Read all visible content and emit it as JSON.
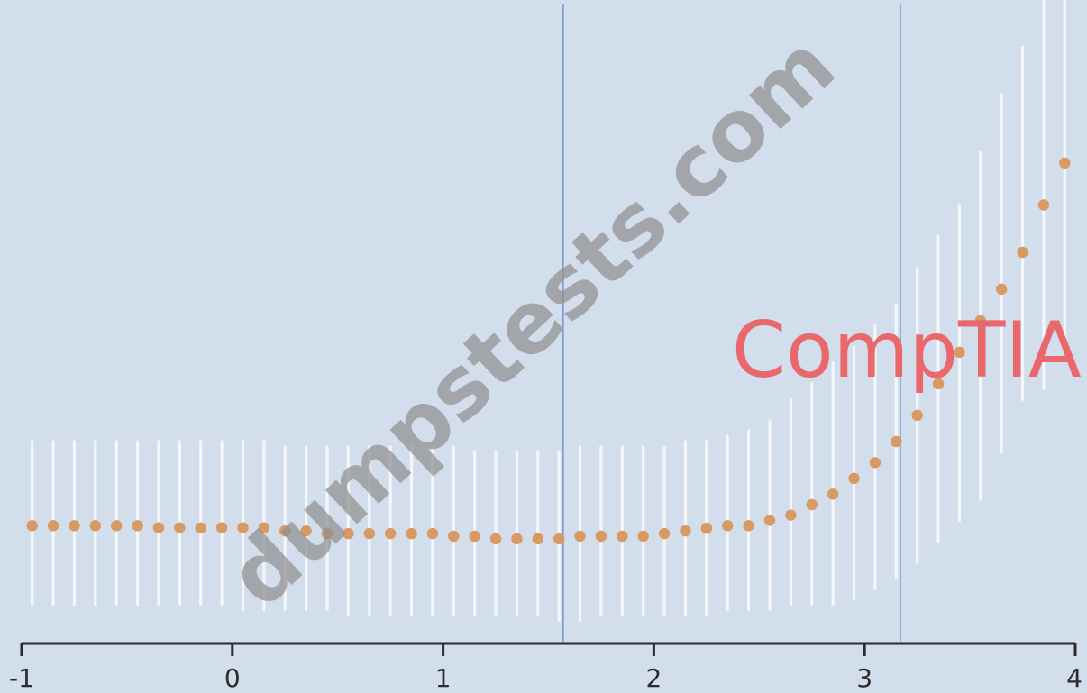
{
  "chart_data": {
    "type": "scatter",
    "title": "",
    "xlabel": "",
    "ylabel": "",
    "xlim": [
      -1,
      4
    ],
    "ylim": [
      -2,
      10
    ],
    "x_ticks": [
      "-1",
      "0",
      "1",
      "2",
      "3",
      "4"
    ],
    "y_ticks_shown": false,
    "grid": false,
    "legend": "none",
    "vertical_reference_lines": [
      1.57,
      3.17
    ],
    "series": [
      {
        "marker": "dot",
        "error_bars": "vertical",
        "x": [
          -0.95,
          -0.85,
          -0.75,
          -0.65,
          -0.55,
          -0.45,
          -0.35,
          -0.25,
          -0.15,
          -0.05,
          0.05,
          0.15,
          0.25,
          0.35,
          0.45,
          0.55,
          0.65,
          0.75,
          0.85,
          0.95,
          1.05,
          1.15,
          1.25,
          1.35,
          1.45,
          1.55,
          1.65,
          1.75,
          1.85,
          1.95,
          2.05,
          2.15,
          2.25,
          2.35,
          2.45,
          2.55,
          2.65,
          2.75,
          2.85,
          2.95,
          3.05,
          3.15,
          3.25,
          3.35,
          3.45,
          3.55,
          3.65,
          3.75,
          3.85,
          3.95
        ],
        "y": [
          0,
          0,
          0,
          0,
          0,
          0,
          -0.04,
          -0.04,
          -0.04,
          -0.04,
          -0.04,
          -0.04,
          -0.1,
          -0.1,
          -0.15,
          -0.15,
          -0.15,
          -0.15,
          -0.15,
          -0.15,
          -0.2,
          -0.2,
          -0.25,
          -0.25,
          -0.25,
          -0.25,
          -0.2,
          -0.2,
          -0.2,
          -0.2,
          -0.15,
          -0.1,
          -0.05,
          0,
          0,
          0.1,
          0.2,
          0.4,
          0.6,
          0.9,
          1.2,
          1.6,
          2.1,
          2.7,
          3.3,
          3.9,
          4.5,
          5.2,
          6.1,
          6.9
        ],
        "y_lower": [
          -1.5,
          -1.5,
          -1.5,
          -1.5,
          -1.5,
          -1.5,
          -1.5,
          -1.5,
          -1.5,
          -1.5,
          -1.6,
          -1.6,
          -1.6,
          -1.6,
          -1.6,
          -1.7,
          -1.7,
          -1.7,
          -1.7,
          -1.7,
          -1.7,
          -1.7,
          -1.7,
          -1.7,
          -1.7,
          -1.8,
          -1.8,
          -1.7,
          -1.7,
          -1.7,
          -1.7,
          -1.7,
          -1.7,
          -1.6,
          -1.6,
          -1.6,
          -1.5,
          -1.5,
          -1.5,
          -1.4,
          -1.2,
          -1,
          -0.7,
          -0.3,
          0.1,
          0.5,
          1.4,
          2.4,
          2.6,
          3.4
        ],
        "y_upper": [
          1.6,
          1.6,
          1.6,
          1.6,
          1.6,
          1.6,
          1.6,
          1.6,
          1.6,
          1.6,
          1.6,
          1.6,
          1.5,
          1.5,
          1.5,
          1.5,
          1.5,
          1.5,
          1.5,
          1.5,
          1.5,
          1.4,
          1.4,
          1.4,
          1.4,
          1.4,
          1.5,
          1.5,
          1.5,
          1.5,
          1.5,
          1.6,
          1.6,
          1.7,
          1.8,
          2,
          2.4,
          2.7,
          3.1,
          3.4,
          3.8,
          4.2,
          4.9,
          5.5,
          6.1,
          7.1,
          8.2,
          9.1,
          10.3,
          11
        ]
      }
    ]
  },
  "overlay": {
    "watermark": "dumpstests.com",
    "logo": "CompTIA"
  },
  "colors": {
    "background": "#d3deed",
    "marker": "#d89a62",
    "error_bar": "#f4f6fa",
    "reference_line": "#7a9ad0",
    "axis": "#2b2b2b",
    "watermark": "#8f8f8f",
    "logo": "#e8686c"
  }
}
